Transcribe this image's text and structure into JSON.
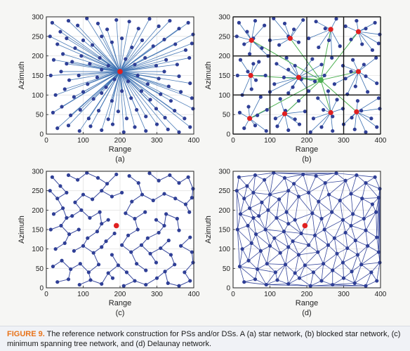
{
  "caption": {
    "label": "FIGURE 9.",
    "text": "The reference network construction for PSs and/or DSs. A (a) star network, (b) blocked star network, (c) minimum spanning tree network, and (d) Delaunay network."
  },
  "colors": {
    "point": "#2f3f96",
    "edge_star": "#3a6fb0",
    "edge_tree": "#36479c",
    "reference": "#e02020",
    "sub_reference": "#4cb050",
    "block_grid": "#111111",
    "grid": "#e4e4e4",
    "caption_label": "#e8731a"
  },
  "chart_data": [
    {
      "id": "a",
      "panel_label": "(a)",
      "type": "scatter",
      "network": "star",
      "xlabel": "Range",
      "ylabel": "Azimuth",
      "xlim": [
        0,
        400
      ],
      "ylim": [
        0,
        300
      ],
      "xticks": [
        0,
        100,
        200,
        300,
        400
      ],
      "yticks": [
        0,
        50,
        100,
        150,
        200,
        250,
        300
      ],
      "grid": true,
      "reference_point": [
        200,
        160
      ]
    },
    {
      "id": "b",
      "panel_label": "(b)",
      "type": "scatter",
      "network": "blocked-star",
      "xlabel": "Range",
      "ylabel": "Azimuth",
      "xlim": [
        0,
        400
      ],
      "ylim": [
        0,
        300
      ],
      "xticks": [
        0,
        100,
        200,
        300,
        400
      ],
      "yticks": [
        0,
        50,
        100,
        150,
        200,
        250,
        300
      ],
      "grid": true,
      "block_edges_x": [
        0,
        100,
        200,
        300,
        400
      ],
      "block_edges_y": [
        0,
        100,
        200,
        300
      ],
      "reference_point": [
        238,
        138
      ],
      "block_references": [
        [
          50,
          240
        ],
        [
          155,
          245
        ],
        [
          265,
          268
        ],
        [
          340,
          262
        ],
        [
          48,
          150
        ],
        [
          178,
          145
        ],
        [
          340,
          160
        ],
        [
          45,
          40
        ],
        [
          140,
          52
        ],
        [
          265,
          55
        ],
        [
          335,
          57
        ]
      ]
    },
    {
      "id": "c",
      "panel_label": "(c)",
      "type": "scatter",
      "network": "minimum-spanning-tree",
      "xlabel": "Range",
      "ylabel": "Azimuth",
      "xlim": [
        0,
        400
      ],
      "ylim": [
        0,
        300
      ],
      "xticks": [
        0,
        100,
        200,
        300,
        400
      ],
      "yticks": [
        0,
        50,
        100,
        150,
        200,
        250,
        300
      ],
      "grid": true,
      "reference_point": [
        190,
        160
      ]
    },
    {
      "id": "d",
      "panel_label": "(d)",
      "type": "scatter",
      "network": "delaunay",
      "xlabel": "Range",
      "ylabel": "Azimuth",
      "xlim": [
        0,
        400
      ],
      "ylim": [
        0,
        300
      ],
      "xticks": [
        0,
        100,
        200,
        300,
        400
      ],
      "yticks": [
        0,
        50,
        100,
        150,
        200,
        250,
        300
      ],
      "grid": true,
      "reference_point": [
        195,
        160
      ]
    }
  ],
  "points": [
    [
      16,
      285
    ],
    [
      38,
      262
    ],
    [
      60,
      290
    ],
    [
      85,
      278
    ],
    [
      110,
      296
    ],
    [
      140,
      283
    ],
    [
      165,
      268
    ],
    [
      190,
      292
    ],
    [
      225,
      288
    ],
    [
      250,
      270
    ],
    [
      280,
      295
    ],
    [
      305,
      276
    ],
    [
      335,
      290
    ],
    [
      360,
      270
    ],
    [
      385,
      285
    ],
    [
      398,
      255
    ],
    [
      10,
      250
    ],
    [
      30,
      230
    ],
    [
      55,
      245
    ],
    [
      78,
      220
    ],
    [
      100,
      240
    ],
    [
      125,
      228
    ],
    [
      150,
      250
    ],
    [
      178,
      235
    ],
    [
      205,
      245
    ],
    [
      232,
      222
    ],
    [
      260,
      240
    ],
    [
      290,
      225
    ],
    [
      320,
      242
    ],
    [
      350,
      230
    ],
    [
      378,
      215
    ],
    [
      395,
      232
    ],
    [
      20,
      190
    ],
    [
      45,
      205
    ],
    [
      70,
      185
    ],
    [
      95,
      200
    ],
    [
      118,
      180
    ],
    [
      145,
      195
    ],
    [
      168,
      175
    ],
    [
      215,
      192
    ],
    [
      240,
      178
    ],
    [
      268,
      195
    ],
    [
      298,
      175
    ],
    [
      325,
      190
    ],
    [
      355,
      178
    ],
    [
      388,
      195
    ],
    [
      12,
      150
    ],
    [
      40,
      160
    ],
    [
      62,
      138
    ],
    [
      88,
      150
    ],
    [
      112,
      128
    ],
    [
      138,
      145
    ],
    [
      162,
      120
    ],
    [
      185,
      140
    ],
    [
      222,
      135
    ],
    [
      248,
      150
    ],
    [
      275,
      128
    ],
    [
      305,
      142
    ],
    [
      332,
      122
    ],
    [
      360,
      148
    ],
    [
      390,
      130
    ],
    [
      25,
      100
    ],
    [
      50,
      115
    ],
    [
      75,
      95
    ],
    [
      100,
      108
    ],
    [
      128,
      90
    ],
    [
      150,
      105
    ],
    [
      178,
      85
    ],
    [
      205,
      110
    ],
    [
      230,
      92
    ],
    [
      258,
      110
    ],
    [
      282,
      88
    ],
    [
      310,
      102
    ],
    [
      338,
      85
    ],
    [
      365,
      108
    ],
    [
      395,
      92
    ],
    [
      18,
      55
    ],
    [
      42,
      70
    ],
    [
      66,
      48
    ],
    [
      92,
      62
    ],
    [
      115,
      40
    ],
    [
      142,
      60
    ],
    [
      168,
      38
    ],
    [
      195,
      58
    ],
    [
      218,
      40
    ],
    [
      245,
      62
    ],
    [
      270,
      45
    ],
    [
      298,
      65
    ],
    [
      322,
      42
    ],
    [
      348,
      60
    ],
    [
      375,
      40
    ],
    [
      398,
      65
    ],
    [
      30,
      15
    ],
    [
      60,
      22
    ],
    [
      90,
      8
    ],
    [
      120,
      20
    ],
    [
      150,
      10
    ],
    [
      180,
      25
    ],
    [
      210,
      5
    ],
    [
      240,
      18
    ],
    [
      270,
      8
    ],
    [
      300,
      25
    ],
    [
      330,
      12
    ],
    [
      360,
      5
    ],
    [
      390,
      18
    ],
    [
      55,
      180
    ],
    [
      320,
      160
    ],
    [
      150,
      165
    ]
  ]
}
